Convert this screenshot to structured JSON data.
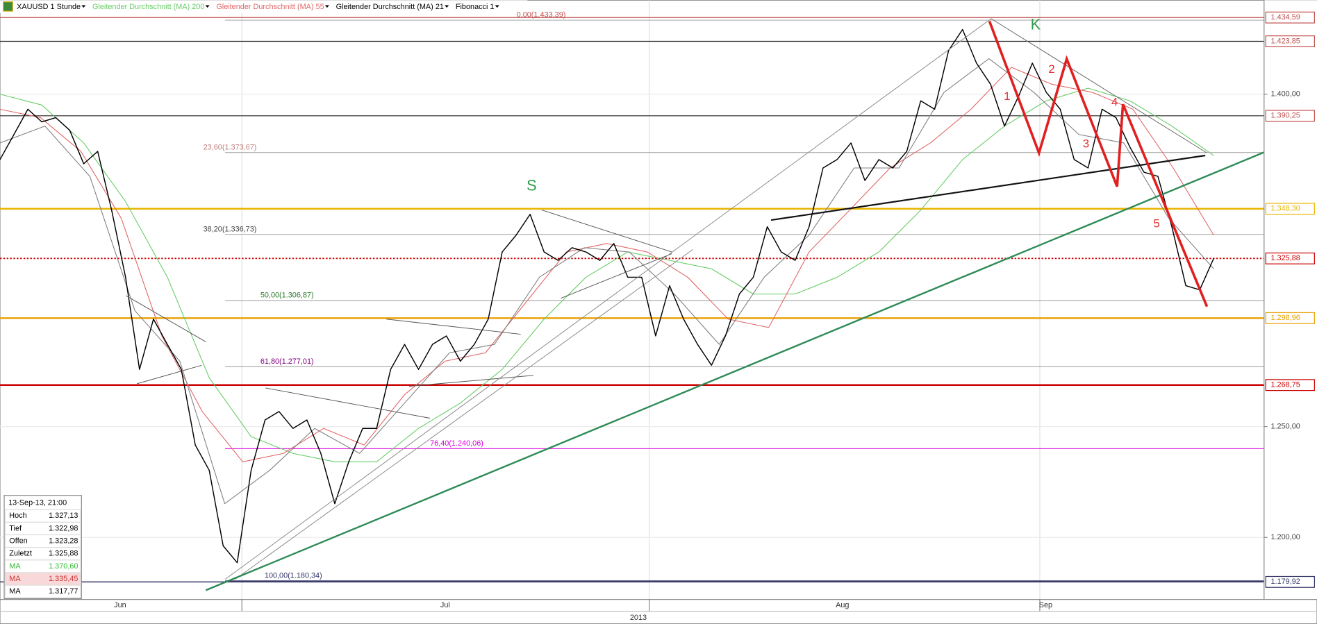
{
  "chart_data": {
    "type": "line",
    "ylim": [
      1172,
      1442.4
    ],
    "yticks": [
      {
        "value": 1200,
        "label": "1.200,00"
      },
      {
        "value": 1250,
        "label": "1.250,00"
      },
      {
        "value": 1400,
        "label": "1.400,00"
      }
    ],
    "grid": true,
    "x_labels": {
      "months": [
        "Jun",
        "Jul",
        "Aug",
        "Sep"
      ],
      "year": "2013"
    },
    "series": [
      {
        "name": "XAUUSD 1 Stunde",
        "color": "#000000",
        "values": [
          1370.5,
          1381.8,
          1393.2,
          1387.5,
          1389.4,
          1383.7,
          1368.6,
          1374.2,
          1347.7,
          1317.4,
          1275.8,
          1298.5,
          1287.1,
          1275.8,
          1241.7,
          1230.3,
          1196.2,
          1188.6,
          1230.3,
          1253.0,
          1256.8,
          1249.2,
          1253.0,
          1237.9,
          1215.2,
          1234.1,
          1249.2,
          1249.2,
          1275.8,
          1287.1,
          1275.8,
          1287.1,
          1290.9,
          1279.5,
          1287.1,
          1298.5,
          1328.8,
          1336.4,
          1345.8,
          1328.8,
          1325.0,
          1330.7,
          1328.8,
          1325.0,
          1332.6,
          1317.4,
          1317.4,
          1290.9,
          1313.6,
          1298.5,
          1287.1,
          1277.7,
          1290.9,
          1309.8,
          1317.4,
          1340.2,
          1328.8,
          1325.0,
          1340.2,
          1366.7,
          1370.5,
          1378.0,
          1361.0,
          1370.5,
          1366.7,
          1374.2,
          1397.0,
          1393.2,
          1419.7,
          1429.2,
          1414.0,
          1404.5,
          1385.6,
          1398.9,
          1414.0,
          1400.8,
          1393.2,
          1370.5,
          1366.7,
          1393.2,
          1389.4,
          1376.1,
          1364.8,
          1362.9,
          1340.2,
          1313.6,
          1311.7,
          1325.9
        ]
      },
      {
        "name": "Gleitender Durchschnitt (MA) 200",
        "color": "#66cc66",
        "values": [
          1400,
          1395.1,
          1378,
          1351.5,
          1317.4,
          1272,
          1245.5,
          1237.9,
          1234.1,
          1234.1,
          1249.2,
          1260.6,
          1275.8,
          1298.5,
          1317.4,
          1328.8,
          1325,
          1321.2,
          1309.8,
          1309.8,
          1317.4,
          1328.8,
          1347.7,
          1370.5,
          1385.6,
          1397,
          1402.7,
          1397,
          1385.6,
          1372.3
        ]
      },
      {
        "name": "Gleitender Durchschnitt (MA) 55",
        "color": "#e06666",
        "values": [
          1393.2,
          1389.4,
          1374.2,
          1343.9,
          1290.9,
          1256.8,
          1234.1,
          1237.9,
          1249.2,
          1241.7,
          1264.4,
          1279.5,
          1283.3,
          1306.1,
          1328.8,
          1332.6,
          1328.8,
          1317.4,
          1298.5,
          1294.7,
          1328.8,
          1347.7,
          1366.7,
          1378,
          1393.2,
          1412.1,
          1404.5,
          1400.8,
          1393.2,
          1366.7,
          1336.4
        ]
      },
      {
        "name": "Gleitender Durchschnitt (MA) 21",
        "color": "#808080",
        "values": [
          1378,
          1385.6,
          1362.9,
          1302.3,
          1279.5,
          1215.2,
          1230.3,
          1249.2,
          1237.9,
          1260.6,
          1283.3,
          1287.1,
          1317.4,
          1330.7,
          1328.8,
          1309.8,
          1287.1,
          1317.4,
          1336.4,
          1366.7,
          1366.7,
          1400.8,
          1416,
          1400.8,
          1381.8,
          1378,
          1344,
          1321.2
        ]
      }
    ],
    "levels": [
      {
        "value": 1434.59,
        "label": "1.434,59",
        "color": "#c0504d"
      },
      {
        "value": 1423.85,
        "label": "1.423,85",
        "color": "#c0504d"
      },
      {
        "value": 1390.25,
        "label": "1.390,25",
        "color": "#c0504d"
      },
      {
        "value": 1348.3,
        "label": "1.348,30",
        "color": "#e8b400"
      },
      {
        "value": 1325.88,
        "label": "1.325,88",
        "color": "#cc0000"
      },
      {
        "value": 1298.96,
        "label": "1.298,96",
        "color": "#e8a000"
      },
      {
        "value": 1268.75,
        "label": "1.268,75",
        "color": "#cc0000"
      },
      {
        "value": 1179.92,
        "label": "1.179,92",
        "color": "#333366"
      }
    ],
    "fibonacci": {
      "name": "Fibonacci 1",
      "levels": [
        {
          "value": 1433.39,
          "label": "0,00(1.433,39)",
          "color": "#c0504d"
        },
        {
          "value": 1373.67,
          "label": "23,60(1.373,67)",
          "color": "#c08080"
        },
        {
          "value": 1336.73,
          "label": "38,20(1.336,73)",
          "color": "#444444"
        },
        {
          "value": 1306.87,
          "label": "50,00(1.306,87)",
          "color": "#2a7a2a"
        },
        {
          "value": 1277.01,
          "label": "61,80(1.277,01)",
          "color": "#800080"
        },
        {
          "value": 1240.06,
          "label": "76,40(1.240,06)",
          "color": "#dd00dd"
        },
        {
          "value": 1180.34,
          "label": "100,00(1.180,34)",
          "color": "#333366"
        }
      ]
    },
    "annotations": [
      {
        "text": "S",
        "color": "#2e9b4e"
      },
      {
        "text": "K",
        "color": "#2e9b4e"
      },
      {
        "text": "1",
        "color": "#e03030"
      },
      {
        "text": "2",
        "color": "#e03030"
      },
      {
        "text": "3",
        "color": "#e03030"
      },
      {
        "text": "4",
        "color": "#e03030"
      },
      {
        "text": "5",
        "color": "#e03030"
      }
    ],
    "info": {
      "date": "13-Sep-13, 21:00",
      "rows": [
        {
          "label": "Hoch",
          "value": "1.327,13",
          "color": "#000000"
        },
        {
          "label": "Tief",
          "value": "1.322,98",
          "color": "#000000"
        },
        {
          "label": "Offen",
          "value": "1.323,28",
          "color": "#000000"
        },
        {
          "label": "Zuletzt",
          "value": "1.325,88",
          "color": "#000000"
        },
        {
          "label": "MA",
          "value": "1.370,60",
          "color": "#33bb33"
        },
        {
          "label": "MA",
          "value": "1.335,45",
          "color": "#cc3333"
        },
        {
          "label": "MA",
          "value": "1.317,77",
          "color": "#000000"
        }
      ]
    }
  }
}
